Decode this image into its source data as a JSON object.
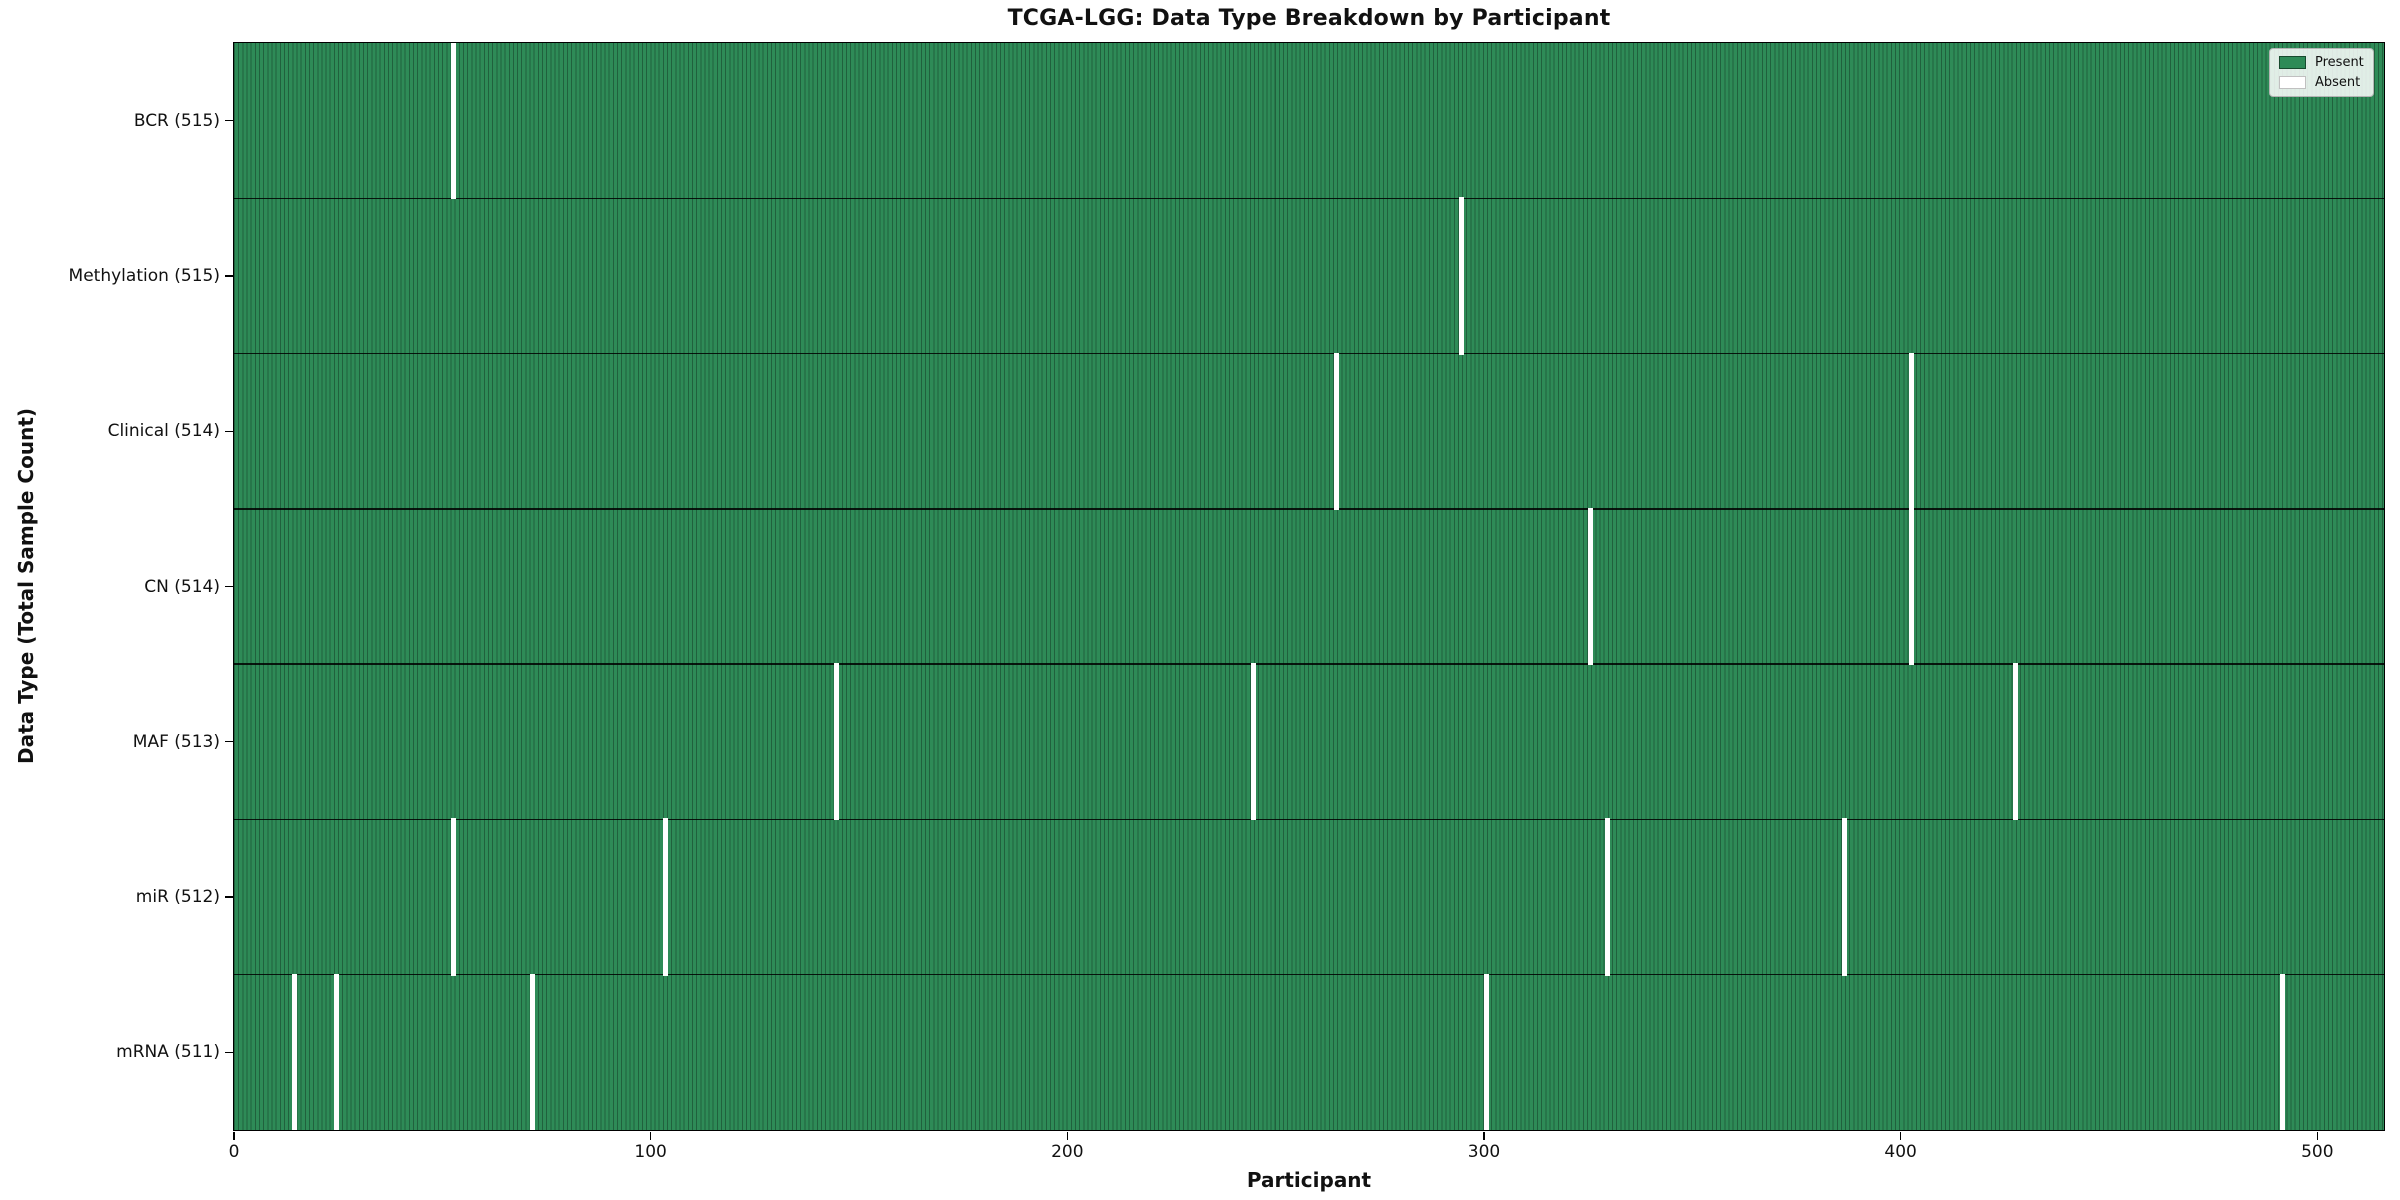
{
  "chart_data": {
    "type": "heatmap",
    "title": "TCGA-LGG: Data Type Breakdown by Participant",
    "xlabel": "Participant",
    "ylabel": "Data Type (Total Sample Count)",
    "x_ticks": [
      0,
      100,
      200,
      300,
      400,
      500
    ],
    "xlim": [
      0,
      516
    ],
    "total_participants": 516,
    "grid": false,
    "legend_position": "upper right",
    "rows": [
      {
        "data_type": "BCR",
        "label": "BCR (515)",
        "present_count": 515,
        "absent_count": 1,
        "absent_participants": [
          52
        ]
      },
      {
        "data_type": "Methylation",
        "label": "Methylation (515)",
        "present_count": 515,
        "absent_count": 1,
        "absent_participants": [
          294
        ]
      },
      {
        "data_type": "Clinical",
        "label": "Clinical (514)",
        "present_count": 514,
        "absent_count": 2,
        "absent_participants": [
          264,
          402
        ]
      },
      {
        "data_type": "CN",
        "label": "CN (514)",
        "present_count": 514,
        "absent_count": 2,
        "absent_participants": [
          325,
          402
        ]
      },
      {
        "data_type": "MAF",
        "label": "MAF (513)",
        "present_count": 513,
        "absent_count": 3,
        "absent_participants": [
          144,
          244,
          427
        ]
      },
      {
        "data_type": "miR",
        "label": "miR (512)",
        "present_count": 512,
        "absent_count": 4,
        "absent_participants": [
          52,
          103,
          329,
          386
        ]
      },
      {
        "data_type": "mRNA",
        "label": "mRNA (511)",
        "present_count": 511,
        "absent_count": 5,
        "absent_participants": [
          14,
          24,
          71,
          300,
          491
        ]
      }
    ],
    "legend": [
      {
        "label": "Present",
        "color": "#2e8b57"
      },
      {
        "label": "Absent",
        "color": "#ffffff"
      }
    ],
    "colors": {
      "present": "#2e8b57",
      "absent": "#ffffff",
      "cell_edge": "rgba(0,0,0,0.30)",
      "row_divider": "rgba(0,0,0,0.85)",
      "axis": "#000000",
      "text": "#111111"
    }
  }
}
